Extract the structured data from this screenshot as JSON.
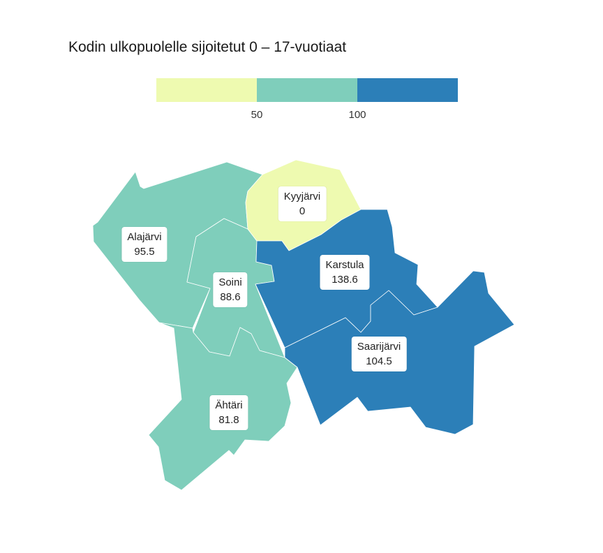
{
  "title": "Kodin ulkopuolelle sijoitetut 0 – 17-vuotiaat",
  "legend": {
    "bins": [
      {
        "label": "",
        "color": "#eefab0"
      },
      {
        "label": "50",
        "color": "#7fcebb"
      },
      {
        "label": "100",
        "color": "#2c7fb8"
      }
    ],
    "tick_labels": [
      "50",
      "100"
    ]
  },
  "regions": [
    {
      "name": "Alajärvi",
      "value": "95.5"
    },
    {
      "name": "Soini",
      "value": "88.6"
    },
    {
      "name": "Kyyjärvi",
      "value": "0"
    },
    {
      "name": "Karstula",
      "value": "138.6"
    },
    {
      "name": "Saarijärvi",
      "value": "104.5"
    },
    {
      "name": "Ähtäri",
      "value": "81.8"
    }
  ],
  "colors": {
    "low": "#eefab0",
    "mid": "#7fcebb",
    "high": "#2c7fb8",
    "border": "#ffffff"
  }
}
